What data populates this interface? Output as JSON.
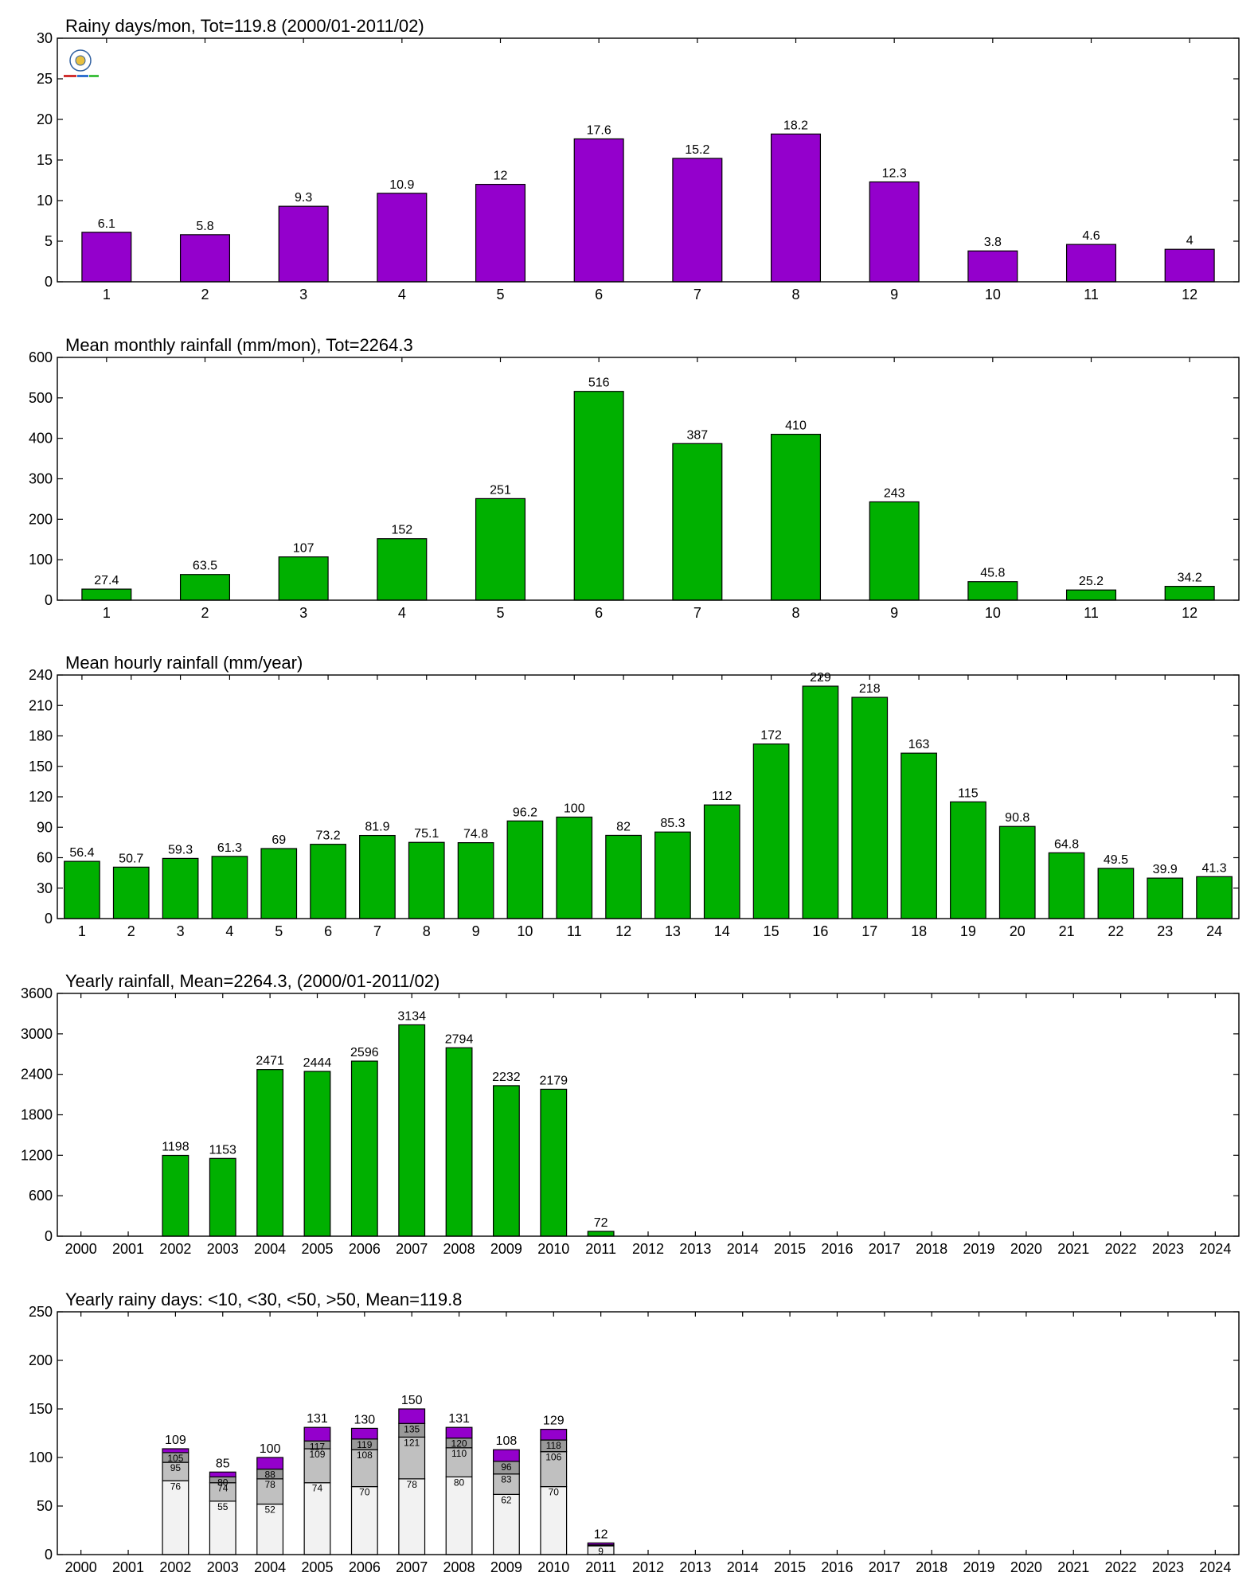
{
  "chart_data": [
    {
      "type": "bar",
      "title": "Rainy days/mon, Tot=119.8 (2000/01-2011/02)",
      "categories": [
        "1",
        "2",
        "3",
        "4",
        "5",
        "6",
        "7",
        "8",
        "9",
        "10",
        "11",
        "12"
      ],
      "values": [
        6.1,
        5.8,
        9.3,
        10.9,
        12,
        17.6,
        15.2,
        18.2,
        12.3,
        3.8,
        4.6,
        4
      ],
      "value_labels": [
        "6.1",
        "5.8",
        "9.3",
        "10.9",
        "12",
        "17.6",
        "15.2",
        "18.2",
        "12.3",
        "3.8",
        "4.6",
        "4"
      ],
      "ylim": [
        0,
        30
      ],
      "yticks": [
        "0",
        "5",
        "10",
        "15",
        "20",
        "25",
        "30"
      ],
      "color": "#9400cc"
    },
    {
      "type": "bar",
      "title": "Mean monthly rainfall (mm/mon), Tot=2264.3",
      "categories": [
        "1",
        "2",
        "3",
        "4",
        "5",
        "6",
        "7",
        "8",
        "9",
        "10",
        "11",
        "12"
      ],
      "values": [
        27.4,
        63.5,
        107,
        152,
        251,
        516,
        387,
        410,
        243,
        45.8,
        25.2,
        34.2
      ],
      "value_labels": [
        "27.4",
        "63.5",
        "107",
        "152",
        "251",
        "516",
        "387",
        "410",
        "243",
        "45.8",
        "25.2",
        "34.2"
      ],
      "ylim": [
        0,
        600
      ],
      "yticks": [
        "0",
        "100",
        "200",
        "300",
        "400",
        "500",
        "600"
      ],
      "color": "#00b000"
    },
    {
      "type": "bar",
      "title": "Mean hourly rainfall (mm/year)",
      "categories": [
        "1",
        "2",
        "3",
        "4",
        "5",
        "6",
        "7",
        "8",
        "9",
        "10",
        "11",
        "12",
        "13",
        "14",
        "15",
        "16",
        "17",
        "18",
        "19",
        "20",
        "21",
        "22",
        "23",
        "24"
      ],
      "values": [
        56.4,
        50.7,
        59.3,
        61.3,
        69,
        73.2,
        81.9,
        75.1,
        74.8,
        96.2,
        100,
        82,
        85.3,
        112,
        172,
        229,
        218,
        163,
        115,
        90.8,
        64.8,
        49.5,
        39.9,
        41.3
      ],
      "value_labels": [
        "56.4",
        "50.7",
        "59.3",
        "61.3",
        "69",
        "73.2",
        "81.9",
        "75.1",
        "74.8",
        "96.2",
        "100",
        "82",
        "85.3",
        "112",
        "172",
        "229",
        "218",
        "163",
        "115",
        "90.8",
        "64.8",
        "49.5",
        "39.9",
        "41.3"
      ],
      "ylim": [
        0,
        240
      ],
      "yticks": [
        "0",
        "30",
        "60",
        "90",
        "120",
        "150",
        "180",
        "210",
        "240"
      ],
      "color": "#00b000"
    },
    {
      "type": "bar",
      "title": "Yearly rainfall, Mean=2264.3, (2000/01-2011/02)",
      "categories": [
        "2000",
        "2001",
        "2002",
        "2003",
        "2004",
        "2005",
        "2006",
        "2007",
        "2008",
        "2009",
        "2010",
        "2011",
        "2012",
        "2013",
        "2014",
        "2015",
        "2016",
        "2017",
        "2018",
        "2019",
        "2020",
        "2021",
        "2022",
        "2023",
        "2024"
      ],
      "values": [
        0,
        0,
        1198,
        1153,
        2471,
        2444,
        2596,
        3134,
        2794,
        2232,
        2179,
        72,
        0,
        0,
        0,
        0,
        0,
        0,
        0,
        0,
        0,
        0,
        0,
        0,
        0
      ],
      "value_labels": [
        "",
        "",
        "1198",
        "1153",
        "2471",
        "2444",
        "2596",
        "3134",
        "2794",
        "2232",
        "2179",
        "72",
        "",
        "",
        "",
        "",
        "",
        "",
        "",
        "",
        "",
        "",
        "",
        "",
        ""
      ],
      "ylim": [
        0,
        3600
      ],
      "yticks": [
        "0",
        "600",
        "1200",
        "1800",
        "2400",
        "3000",
        "3600"
      ],
      "color": "#00b000"
    },
    {
      "type": "bar",
      "stacked": true,
      "title": "Yearly rainy days: <10, <30, <50, >50, Mean=119.8",
      "categories": [
        "2000",
        "2001",
        "2002",
        "2003",
        "2004",
        "2005",
        "2006",
        "2007",
        "2008",
        "2009",
        "2010",
        "2011",
        "2012",
        "2013",
        "2014",
        "2015",
        "2016",
        "2017",
        "2018",
        "2019",
        "2020",
        "2021",
        "2022",
        "2023",
        "2024"
      ],
      "cumulative": {
        "lt10": [
          0,
          0,
          76,
          55,
          52,
          74,
          70,
          78,
          80,
          62,
          70,
          9,
          0,
          0,
          0,
          0,
          0,
          0,
          0,
          0,
          0,
          0,
          0,
          0,
          0
        ],
        "lt30": [
          0,
          0,
          95,
          74,
          78,
          109,
          108,
          121,
          110,
          83,
          106,
          10,
          0,
          0,
          0,
          0,
          0,
          0,
          0,
          0,
          0,
          0,
          0,
          0,
          0
        ],
        "lt50": [
          0,
          0,
          105,
          80,
          88,
          117,
          119,
          135,
          120,
          96,
          118,
          10,
          0,
          0,
          0,
          0,
          0,
          0,
          0,
          0,
          0,
          0,
          0,
          0,
          0
        ],
        "total": [
          0,
          0,
          109,
          85,
          100,
          131,
          130,
          150,
          131,
          108,
          129,
          12,
          0,
          0,
          0,
          0,
          0,
          0,
          0,
          0,
          0,
          0,
          0,
          0,
          0
        ]
      },
      "labels": {
        "lt10": [
          "",
          "",
          "76",
          "55",
          "52",
          "74",
          "70",
          "78",
          "80",
          "62",
          "70",
          "9",
          "",
          "",
          "",
          "",
          "",
          "",
          "",
          "",
          "",
          "",
          "",
          "",
          ""
        ],
        "lt30": [
          "",
          "",
          "95",
          "74",
          "78",
          "109",
          "108",
          "121",
          "110",
          "83",
          "106",
          "",
          "",
          "",
          "",
          "",
          "",
          "",
          "",
          "",
          "",
          "",
          "",
          "",
          ""
        ],
        "lt50": [
          "",
          "",
          "105",
          "80",
          "88",
          "117",
          "119",
          "135",
          "120",
          "96",
          "118",
          "",
          "",
          "",
          "",
          "",
          "",
          "",
          "",
          "",
          "",
          "",
          "",
          "",
          ""
        ],
        "total": [
          "",
          "",
          "109",
          "85",
          "100",
          "131",
          "130",
          "150",
          "131",
          "108",
          "129",
          "12",
          "",
          "",
          "",
          "",
          "",
          "",
          "",
          "",
          "",
          "",
          "",
          "",
          ""
        ]
      },
      "ylim": [
        0,
        250
      ],
      "yticks": [
        "0",
        "50",
        "100",
        "150",
        "200",
        "250"
      ],
      "colors": {
        "lt10": "#f2f2f2",
        "lt30": "#c0c0c0",
        "lt50": "#999999",
        "gt50": "#9400cc"
      }
    }
  ]
}
